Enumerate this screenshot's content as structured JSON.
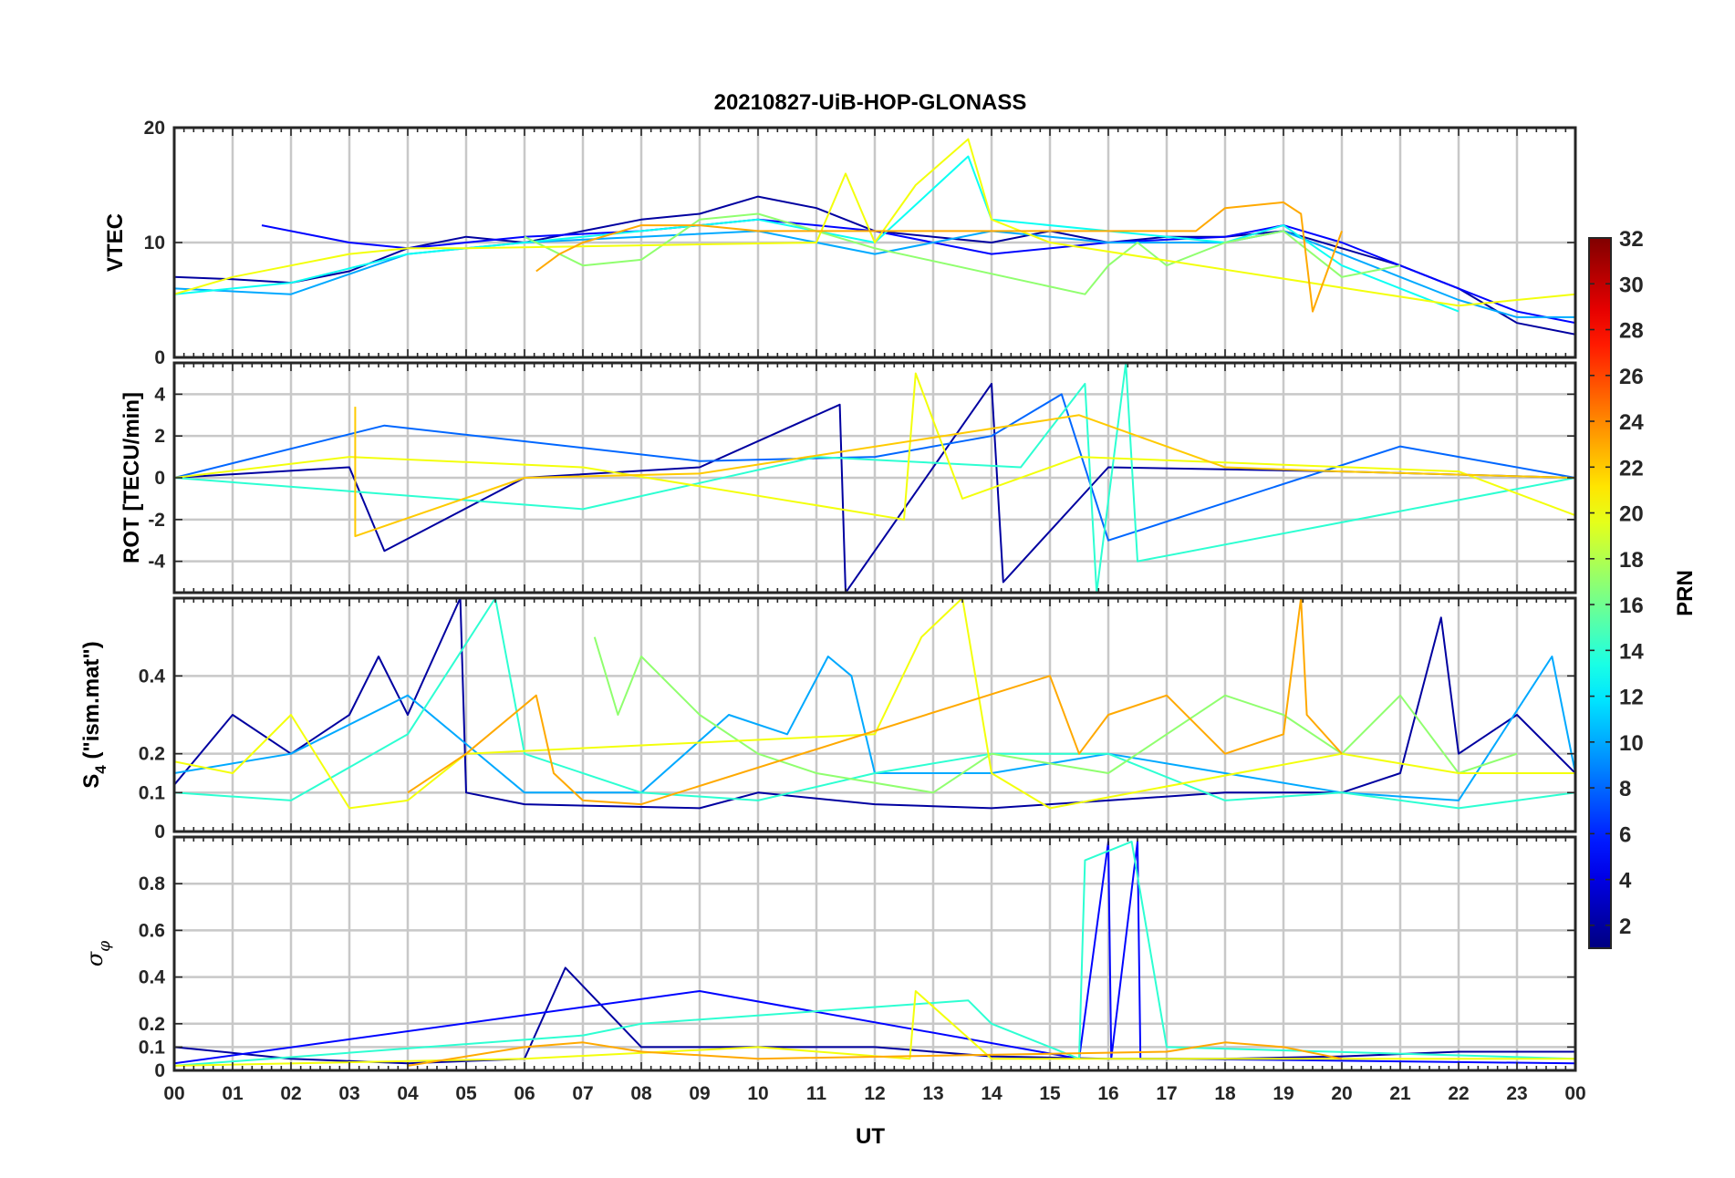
{
  "title": "20210827-UiB-HOP-GLONASS",
  "xlabel": "UT",
  "colorbar": {
    "label": "PRN",
    "range": [
      1,
      32
    ],
    "ticks": [
      "2",
      "4",
      "6",
      "8",
      "10",
      "12",
      "14",
      "16",
      "18",
      "20",
      "22",
      "24",
      "26",
      "28",
      "30",
      "32"
    ],
    "colormap": "jet"
  },
  "chart_data": [
    {
      "type": "line",
      "panel": "vtec",
      "ylabel": "VTEC",
      "xlim": [
        0,
        24
      ],
      "ylim": [
        0,
        20
      ],
      "yticks": [
        "0",
        "10",
        "20"
      ],
      "xticks": [
        "00",
        "01",
        "02",
        "03",
        "04",
        "05",
        "06",
        "07",
        "08",
        "09",
        "10",
        "11",
        "12",
        "13",
        "14",
        "15",
        "16",
        "17",
        "18",
        "19",
        "20",
        "21",
        "22",
        "23",
        "00"
      ],
      "grid": true,
      "series": [
        {
          "prn": 2,
          "x": [
            0,
            1,
            2,
            3,
            4,
            5,
            6,
            7,
            8,
            9,
            10,
            11,
            12,
            13,
            14,
            15,
            16,
            17,
            18,
            19,
            20,
            21,
            22,
            23,
            24
          ],
          "y": [
            7,
            6.8,
            6.5,
            7.5,
            9.5,
            10.5,
            10,
            11,
            12,
            12.5,
            14,
            13,
            11,
            10.5,
            10,
            11,
            10,
            10.5,
            10.5,
            11,
            9.5,
            8,
            6,
            3,
            2
          ]
        },
        {
          "prn": 5,
          "x": [
            1.5,
            3,
            4,
            6,
            8,
            10,
            12,
            14,
            16,
            18,
            19,
            20,
            21,
            22,
            23,
            24
          ],
          "y": [
            11.5,
            10,
            9.5,
            10.5,
            11,
            12,
            11,
            9,
            10,
            10.5,
            11.5,
            10,
            8,
            6,
            4,
            3
          ]
        },
        {
          "prn": 10,
          "x": [
            0,
            2,
            4,
            5,
            6,
            8,
            10,
            12,
            14,
            16,
            18,
            19,
            20,
            21,
            22,
            23,
            24
          ],
          "y": [
            6,
            5.5,
            9,
            9.5,
            10,
            10.5,
            11,
            9,
            11,
            10,
            10,
            11,
            9,
            7,
            5,
            3.5,
            3.5
          ]
        },
        {
          "prn": 13,
          "x": [
            0,
            2,
            4,
            6,
            8,
            10,
            12,
            13.6,
            14,
            16,
            18,
            19,
            20,
            21,
            22
          ],
          "y": [
            5.5,
            6.5,
            9,
            10,
            11,
            12,
            10,
            17.5,
            12,
            11,
            10,
            11.5,
            8,
            6,
            4
          ]
        },
        {
          "prn": 17,
          "x": [
            6,
            7,
            8,
            9,
            10,
            11,
            12,
            15.6,
            16,
            16.5,
            17,
            18,
            19,
            20,
            21
          ],
          "y": [
            10.5,
            8,
            8.5,
            12,
            12.5,
            11,
            9.5,
            5.5,
            8,
            10,
            8,
            10,
            11,
            7,
            8
          ]
        },
        {
          "prn": 20,
          "x": [
            0,
            1,
            2,
            3,
            4,
            5,
            11,
            11.5,
            12,
            12.7,
            13.6,
            14,
            15,
            22,
            23,
            24
          ],
          "y": [
            5.5,
            7,
            8,
            9,
            9.5,
            9.5,
            10,
            16,
            10,
            15,
            19,
            12,
            10,
            4.5,
            5,
            5.5
          ]
        },
        {
          "prn": 23,
          "x": [
            6.2,
            6.6,
            7,
            8,
            9,
            10,
            17.5,
            18,
            19,
            19.3,
            19.5,
            20
          ],
          "y": [
            7.5,
            9,
            10,
            11.5,
            11.5,
            11,
            11,
            13,
            13.5,
            12.5,
            4,
            11
          ]
        }
      ]
    },
    {
      "type": "line",
      "panel": "rot",
      "ylabel": "ROT [TECU/min]",
      "xlim": [
        0,
        24
      ],
      "ylim": [
        -5.5,
        5.5
      ],
      "yticks": [
        "-4",
        "-2",
        "0",
        "2",
        "4"
      ],
      "grid": true,
      "series": [
        {
          "prn": 2,
          "x": [
            0,
            3,
            3.6,
            6,
            9,
            11.4,
            11.5,
            14,
            14.2,
            16,
            20,
            24
          ],
          "y": [
            0,
            0.5,
            -3.5,
            0,
            0.5,
            3.5,
            -5.5,
            4.5,
            -5,
            0.5,
            0.3,
            0
          ]
        },
        {
          "prn": 8,
          "x": [
            0,
            3.6,
            9,
            12,
            14,
            15.2,
            16,
            21,
            24
          ],
          "y": [
            0,
            2.5,
            0.8,
            1,
            2,
            4,
            -3,
            1.5,
            0
          ]
        },
        {
          "prn": 14,
          "x": [
            0,
            7,
            11,
            14.5,
            15.6,
            15.8,
            16.3,
            16.5,
            24
          ],
          "y": [
            0,
            -1.5,
            1,
            0.5,
            4.5,
            -5.5,
            5.5,
            -4,
            0
          ]
        },
        {
          "prn": 20,
          "x": [
            0,
            3,
            7,
            12.5,
            12.7,
            13.5,
            15.5,
            22,
            24
          ],
          "y": [
            0,
            1,
            0.5,
            -2,
            5,
            -1,
            1,
            0.3,
            -1.8
          ]
        },
        {
          "prn": 22,
          "x": [
            3.1,
            3.1,
            6,
            9,
            15.5,
            18,
            20,
            24
          ],
          "y": [
            3.4,
            -2.8,
            0,
            0.2,
            3,
            0.5,
            0.3,
            0
          ]
        }
      ]
    },
    {
      "type": "line",
      "panel": "s4",
      "ylabel": "S4 (\"ism.mat\")",
      "ylabel_main": "S",
      "ylabel_sub": "4",
      "ylabel_rest": " (\"ism.mat\")",
      "xlim": [
        0,
        24
      ],
      "ylim": [
        0,
        0.6
      ],
      "yticks": [
        "0",
        "0.1",
        "0.2",
        "0.4"
      ],
      "grid": true,
      "series": [
        {
          "prn": 2,
          "x": [
            0,
            1,
            2,
            3,
            3.5,
            4,
            4.9,
            5,
            6,
            9,
            10,
            12,
            14,
            16,
            18,
            20,
            21,
            21.7,
            22,
            23,
            24
          ],
          "y": [
            0.12,
            0.3,
            0.2,
            0.3,
            0.45,
            0.3,
            0.6,
            0.1,
            0.07,
            0.06,
            0.1,
            0.07,
            0.06,
            0.08,
            0.1,
            0.1,
            0.15,
            0.55,
            0.2,
            0.3,
            0.15
          ]
        },
        {
          "prn": 10,
          "x": [
            0,
            2,
            4,
            6,
            8,
            9.5,
            10.5,
            11.2,
            11.6,
            12,
            14,
            16,
            18,
            20,
            22,
            23.6,
            24
          ],
          "y": [
            0.15,
            0.2,
            0.35,
            0.1,
            0.1,
            0.3,
            0.25,
            0.45,
            0.4,
            0.15,
            0.15,
            0.2,
            0.15,
            0.1,
            0.08,
            0.45,
            0.15
          ]
        },
        {
          "prn": 14,
          "x": [
            0,
            2,
            4,
            5.5,
            6,
            8,
            10,
            12,
            14,
            16,
            18,
            20,
            22,
            24
          ],
          "y": [
            0.1,
            0.08,
            0.25,
            0.6,
            0.2,
            0.1,
            0.08,
            0.15,
            0.2,
            0.2,
            0.08,
            0.1,
            0.06,
            0.1
          ]
        },
        {
          "prn": 17,
          "x": [
            7.2,
            7.6,
            8,
            9,
            10,
            11,
            13,
            14,
            16,
            18,
            19,
            20,
            21,
            22,
            23
          ],
          "y": [
            0.5,
            0.3,
            0.45,
            0.3,
            0.2,
            0.15,
            0.1,
            0.2,
            0.15,
            0.35,
            0.3,
            0.2,
            0.35,
            0.15,
            0.2
          ]
        },
        {
          "prn": 20,
          "x": [
            0,
            1,
            2,
            3,
            4,
            5,
            12,
            12.8,
            13.5,
            14,
            15,
            20,
            22,
            24
          ],
          "y": [
            0.18,
            0.15,
            0.3,
            0.06,
            0.08,
            0.2,
            0.25,
            0.5,
            0.6,
            0.15,
            0.06,
            0.2,
            0.15,
            0.15
          ]
        },
        {
          "prn": 23,
          "x": [
            4,
            5,
            6.2,
            6.5,
            7,
            8,
            15,
            15.5,
            16,
            17,
            18,
            19,
            19.3,
            19.4,
            20
          ],
          "y": [
            0.1,
            0.2,
            0.35,
            0.15,
            0.08,
            0.07,
            0.4,
            0.2,
            0.3,
            0.35,
            0.2,
            0.25,
            0.6,
            0.3,
            0.2
          ]
        }
      ]
    },
    {
      "type": "line",
      "panel": "sigma_phi",
      "ylabel": "σ φ",
      "ylabel_main": "σ",
      "ylabel_sub": "φ",
      "xlim": [
        0,
        24
      ],
      "ylim": [
        0,
        1
      ],
      "yticks": [
        "0",
        "0.1",
        "0.2",
        "0.4",
        "0.6",
        "0.8"
      ],
      "grid": true,
      "series": [
        {
          "prn": 2,
          "x": [
            0,
            2,
            4,
            6,
            6.7,
            8,
            10,
            12,
            14,
            16,
            18,
            20,
            22,
            24
          ],
          "y": [
            0.1,
            0.05,
            0.03,
            0.05,
            0.44,
            0.1,
            0.1,
            0.1,
            0.06,
            0.05,
            0.05,
            0.06,
            0.08,
            0.08
          ]
        },
        {
          "prn": 5,
          "x": [
            0,
            9,
            15.5,
            16,
            16.05,
            16.5,
            16.55,
            17,
            24
          ],
          "y": [
            0.03,
            0.34,
            0.05,
            0.98,
            0.05,
            0.98,
            0.05,
            0.05,
            0.03
          ]
        },
        {
          "prn": 14,
          "x": [
            0,
            7,
            8,
            13.6,
            14,
            15.5,
            15.6,
            16.4,
            17,
            24
          ],
          "y": [
            0.02,
            0.15,
            0.2,
            0.3,
            0.2,
            0.05,
            0.9,
            0.98,
            0.1,
            0.05
          ]
        },
        {
          "prn": 20,
          "x": [
            0,
            6,
            10,
            12.6,
            12.7,
            14,
            18,
            24
          ],
          "y": [
            0.02,
            0.05,
            0.1,
            0.05,
            0.34,
            0.05,
            0.05,
            0.05
          ]
        },
        {
          "prn": 23,
          "x": [
            4,
            6,
            7,
            8,
            10,
            17,
            18,
            19,
            20
          ],
          "y": [
            0.02,
            0.1,
            0.12,
            0.08,
            0.05,
            0.08,
            0.12,
            0.1,
            0.05
          ]
        }
      ]
    }
  ]
}
